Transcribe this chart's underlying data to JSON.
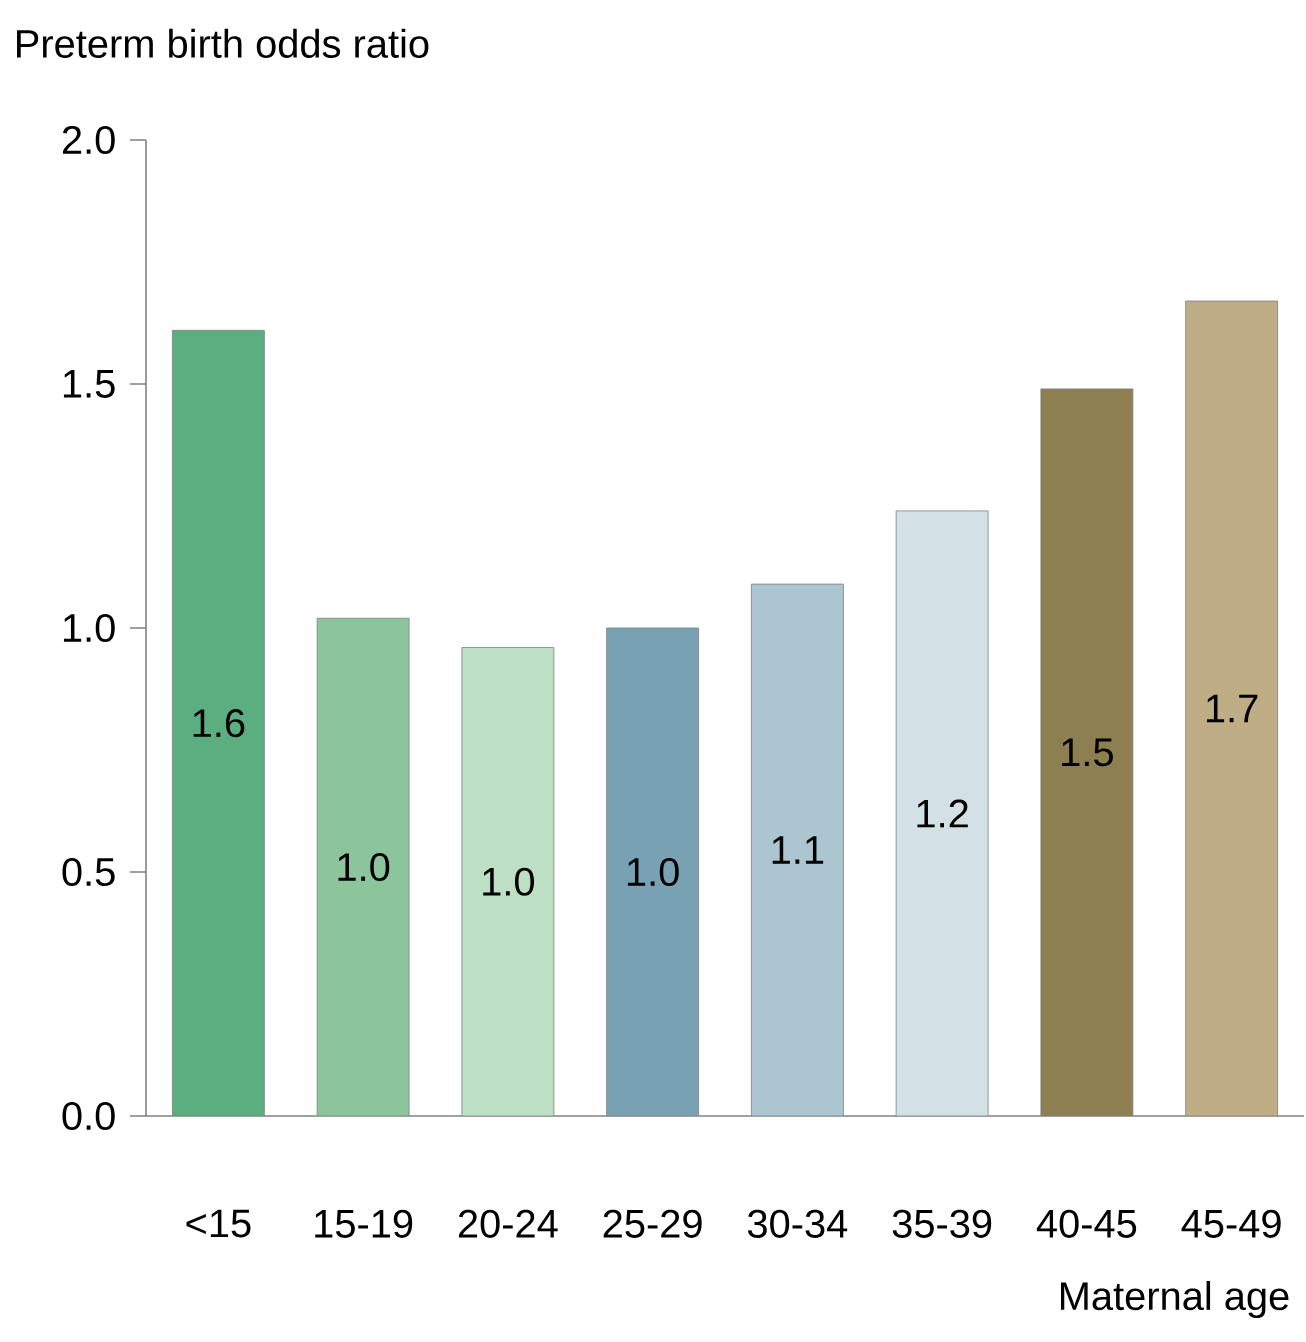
{
  "chart_data": {
    "type": "bar",
    "ylabel": "Preterm birth odds ratio",
    "xlabel": "Maternal age",
    "categories": [
      "<15",
      "15-19",
      "20-24",
      "25-29",
      "30-34",
      "35-39",
      "40-45",
      "45-49"
    ],
    "values": [
      1.61,
      1.02,
      0.96,
      1.0,
      1.09,
      1.24,
      1.49,
      1.67
    ],
    "value_labels": [
      "1.6",
      "1.0",
      "1.0",
      "1.0",
      "1.1",
      "1.2",
      "1.5",
      "1.7"
    ],
    "colors": [
      "#5aae7f",
      "#8cc59c",
      "#bde0c4",
      "#78a2b3",
      "#abc6d0",
      "#d3e0e6",
      "#8e7f50",
      "#bfad85"
    ],
    "ylim": [
      0,
      2.0
    ],
    "yticks": [
      {
        "value": 0,
        "label": "0.0"
      },
      {
        "value": 0.5,
        "label": "0.5"
      },
      {
        "value": 1.0,
        "label": "1.0"
      },
      {
        "value": 1.5,
        "label": "1.5"
      },
      {
        "value": 2.0,
        "label": "2.0"
      }
    ]
  }
}
